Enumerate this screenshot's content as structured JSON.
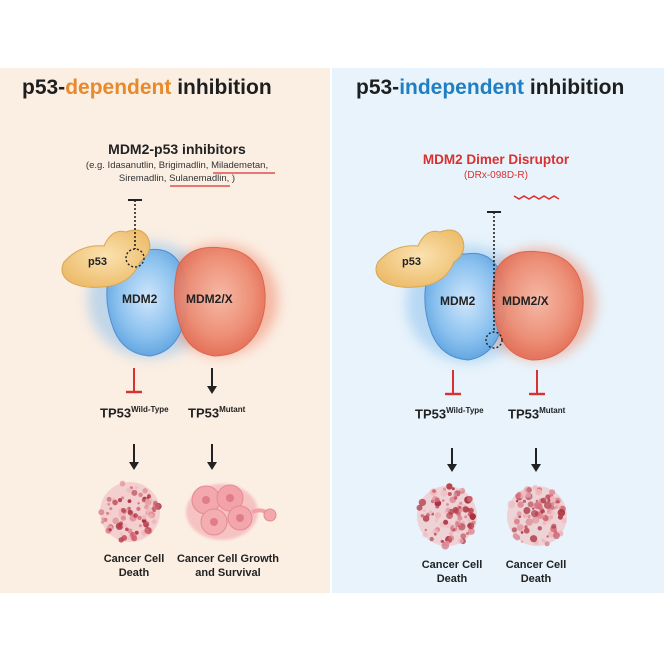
{
  "left": {
    "title_prefix": "p53-",
    "title_key": "dependent",
    "title_suffix": " inhibition",
    "key_color": "#e8892b",
    "inhibitor_title": "MDM2-p53 inhibitors",
    "examples_line1_a": "(e.g. Idasanutlin, Brigimadlin, ",
    "examples_line1_b": "Milademetan",
    "examples_line1_c": ",",
    "examples_line2_a": "Siremadlin, ",
    "examples_line2_b": "Sulanemadlin",
    "examples_line2_c": ", )",
    "p53_label": "p53",
    "mdm2_label": "MDM2",
    "mdmx_label": "MDM2/X",
    "wt_base": "TP53",
    "wt_sup": "Wild-Type",
    "mut_base": "TP53",
    "mut_sup": "Mutant",
    "outcome_left_line1": "Cancer Cell",
    "outcome_left_line2": "Death",
    "outcome_right_line1": "Cancer Cell Growth",
    "outcome_right_line2": "and Survival"
  },
  "right": {
    "title_prefix": "p53-",
    "title_key": "independent",
    "title_suffix": " inhibition",
    "key_color": "#1f7fc4",
    "disruptor_title": "MDM2 Dimer Disruptor",
    "disruptor_sub": "(DRx-098D-R)",
    "p53_label": "p53",
    "mdm2_label": "MDM2",
    "mdmx_label": "MDM2/X",
    "wt_base": "TP53",
    "wt_sup": "Wild-Type",
    "mut_base": "TP53",
    "mut_sup": "Mutant",
    "outcome_left_line1": "Cancer Cell",
    "outcome_left_line2": "Death",
    "outcome_right_line1": "Cancer Cell",
    "outcome_right_line2": "Death"
  },
  "colors": {
    "inhibit_red": "#d93030",
    "p53_yellow": "#f1c77a",
    "mdm2_blue": "#6aaee6",
    "mdmx_red": "#ea7a5e",
    "cell_pink": "#d67b86"
  }
}
